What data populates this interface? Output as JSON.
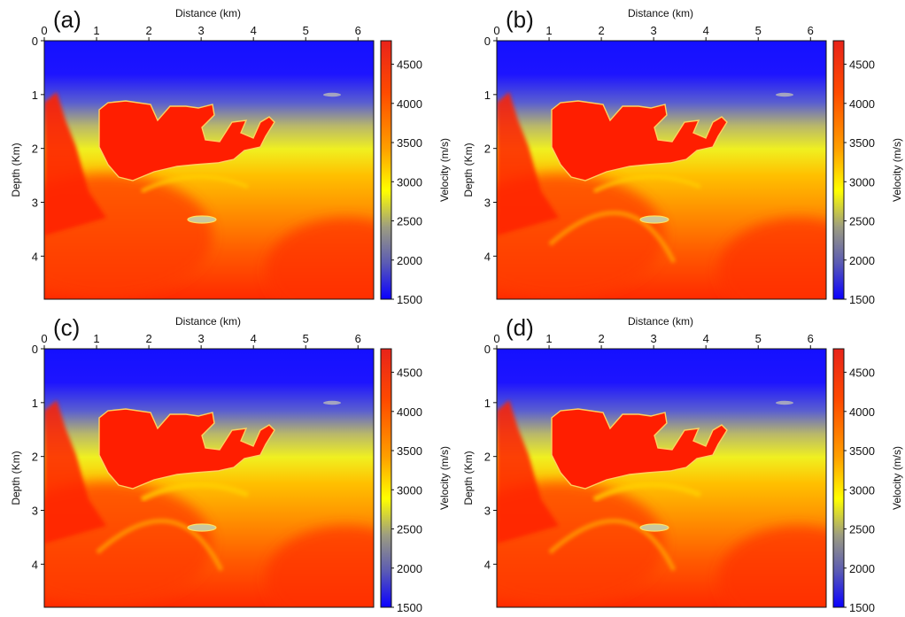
{
  "figure": {
    "colorbar_colors": [
      "#1a10ff",
      "#8888aa",
      "#ffff00",
      "#ff9900",
      "#ff0000",
      "#e8231a"
    ],
    "background_color": "#ffffff"
  },
  "chart_data": [
    {
      "type": "heatmap",
      "panel_label": "(a)",
      "xlabel": "Distance (km)",
      "ylabel": "Depth (Km)",
      "x_ticks": [
        "0",
        "1",
        "2",
        "3",
        "4",
        "5",
        "6"
      ],
      "y_ticks": [
        "0",
        "1",
        "2",
        "3",
        "4"
      ],
      "xlim": [
        0,
        6.3
      ],
      "ylim": [
        0,
        4.8
      ],
      "colorbar_label": "Velocity (m/s)",
      "colorbar_ticks": [
        "1500",
        "2000",
        "2500",
        "3000",
        "3500",
        "4000",
        "4500"
      ],
      "colorbar_range": [
        1500,
        4800
      ],
      "variant": 0
    },
    {
      "type": "heatmap",
      "panel_label": "(b)",
      "xlabel": "Distance (km)",
      "ylabel": "Depth (Km)",
      "x_ticks": [
        "0",
        "1",
        "2",
        "3",
        "4",
        "5",
        "6"
      ],
      "y_ticks": [
        "0",
        "1",
        "2",
        "3",
        "4"
      ],
      "xlim": [
        0,
        6.3
      ],
      "ylim": [
        0,
        4.8
      ],
      "colorbar_label": "Velocity (m/s)",
      "colorbar_ticks": [
        "1500",
        "2000",
        "2500",
        "3000",
        "3500",
        "4000",
        "4500"
      ],
      "colorbar_range": [
        1500,
        4800
      ],
      "variant": 1
    },
    {
      "type": "heatmap",
      "panel_label": "(c)",
      "xlabel": "Distance (km)",
      "ylabel": "Depth (Km)",
      "x_ticks": [
        "0",
        "1",
        "2",
        "3",
        "4",
        "5",
        "6"
      ],
      "y_ticks": [
        "0",
        "1",
        "2",
        "3",
        "4"
      ],
      "xlim": [
        0,
        6.3
      ],
      "ylim": [
        0,
        4.8
      ],
      "colorbar_label": "Velocity (m/s)",
      "colorbar_ticks": [
        "1500",
        "2000",
        "2500",
        "3000",
        "3500",
        "4000",
        "4500"
      ],
      "colorbar_range": [
        1500,
        4800
      ],
      "variant": 2
    },
    {
      "type": "heatmap",
      "panel_label": "(d)",
      "xlabel": "Distance (km)",
      "ylabel": "Depth (Km)",
      "x_ticks": [
        "0",
        "1",
        "2",
        "3",
        "4",
        "5",
        "6"
      ],
      "y_ticks": [
        "0",
        "1",
        "2",
        "3",
        "4"
      ],
      "xlim": [
        0,
        6.3
      ],
      "ylim": [
        0,
        4.8
      ],
      "colorbar_label": "Velocity (m/s)",
      "colorbar_ticks": [
        "1500",
        "2000",
        "2500",
        "3000",
        "3500",
        "4000",
        "4500"
      ],
      "colorbar_range": [
        1500,
        4800
      ],
      "variant": 3
    }
  ]
}
